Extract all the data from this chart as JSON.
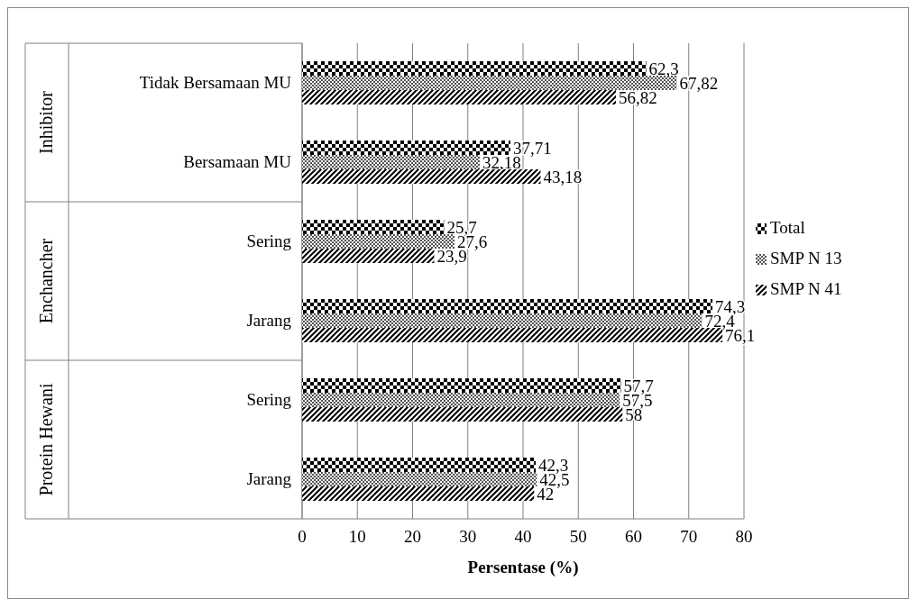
{
  "chart_data": {
    "type": "bar",
    "orientation": "horizontal",
    "xlabel": "Persentase (%)",
    "categories": [
      "Tidak Bersamaan MU",
      "Bersamaan MU",
      "Sering",
      "Jarang",
      "Sering",
      "Jarang"
    ],
    "annotations": [
      "Inhibitor",
      "Enchancher",
      "Protein Hewani"
    ],
    "series": [
      {
        "name": "Total",
        "color": "#000000",
        "values": [
          62.3,
          37.71,
          25.7,
          74.3,
          57.7,
          42.3
        ],
        "value_labels": [
          "62,3",
          "37,71",
          "25,7",
          "74,3",
          "57,7",
          "42,3"
        ]
      },
      {
        "name": "SMP N 13",
        "color": "#000000",
        "values": [
          67.82,
          32.18,
          27.6,
          72.4,
          57.5,
          42.5
        ],
        "value_labels": [
          "67,82",
          "32,18",
          "27,6",
          "72,4",
          "57,5",
          "42,5"
        ]
      },
      {
        "name": "SMP N 41",
        "color": "#000000",
        "values": [
          56.82,
          43.18,
          23.9,
          76.1,
          58,
          42
        ],
        "value_labels": [
          "56,82",
          "43,18",
          "23,9",
          "76,1",
          "58",
          "42"
        ]
      }
    ],
    "xlim": [
      0,
      80
    ],
    "xticks": [
      0,
      10,
      20,
      30,
      40,
      50,
      60,
      70,
      80
    ],
    "grid": "x",
    "legend": "right"
  }
}
